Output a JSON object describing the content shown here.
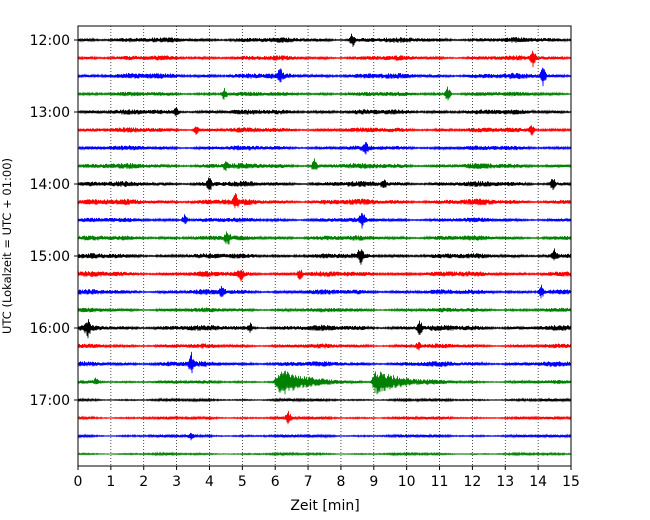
{
  "chart_data": {
    "type": "line",
    "subtype": "helicorder",
    "title": "",
    "xlabel": "Zeit  [min]",
    "ylabel": "UTC (Lokalzeit = UTC + 01:00)",
    "xlim": [
      0,
      15
    ],
    "x_ticks": [
      0,
      1,
      2,
      3,
      4,
      5,
      6,
      7,
      8,
      9,
      10,
      11,
      12,
      13,
      14,
      15
    ],
    "grid": "vertical dotted lines at each minute",
    "row_interval_minutes": 15,
    "y_ticks": [
      {
        "label": "12:00",
        "row": 0
      },
      {
        "label": "13:00",
        "row": 4
      },
      {
        "label": "14:00",
        "row": 8
      },
      {
        "label": "15:00",
        "row": 12
      },
      {
        "label": "16:00",
        "row": 16
      },
      {
        "label": "17:00",
        "row": 20
      }
    ],
    "colors": [
      "#000000",
      "#ff0000",
      "#0000ff",
      "#008000"
    ],
    "series": [
      {
        "start": "12:00",
        "color": "#000000",
        "spikes": [
          {
            "t": 8.35,
            "a": 7
          }
        ],
        "noise": 2.4
      },
      {
        "start": "12:15",
        "color": "#ff0000",
        "spikes": [
          {
            "t": 13.85,
            "a": 8
          }
        ],
        "noise": 2.2
      },
      {
        "start": "12:30",
        "color": "#0000ff",
        "spikes": [
          {
            "t": 6.15,
            "a": 6
          },
          {
            "t": 14.15,
            "a": 9
          }
        ],
        "noise": 2.6
      },
      {
        "start": "12:45",
        "color": "#008000",
        "spikes": [
          {
            "t": 4.45,
            "a": 6
          },
          {
            "t": 11.25,
            "a": 8
          }
        ],
        "noise": 2.0
      },
      {
        "start": "13:00",
        "color": "#000000",
        "spikes": [
          {
            "t": 3.0,
            "a": 4
          }
        ],
        "noise": 2.4
      },
      {
        "start": "13:15",
        "color": "#ff0000",
        "spikes": [
          {
            "t": 3.6,
            "a": 5
          },
          {
            "t": 13.8,
            "a": 6
          }
        ],
        "noise": 2.3
      },
      {
        "start": "13:30",
        "color": "#0000ff",
        "spikes": [
          {
            "t": 8.75,
            "a": 5
          }
        ],
        "noise": 2.2
      },
      {
        "start": "13:45",
        "color": "#008000",
        "spikes": [
          {
            "t": 7.2,
            "a": 7
          },
          {
            "t": 4.5,
            "a": 4
          }
        ],
        "noise": 2.6
      },
      {
        "start": "14:00",
        "color": "#000000",
        "spikes": [
          {
            "t": 4.0,
            "a": 6
          },
          {
            "t": 9.3,
            "a": 6
          },
          {
            "t": 14.45,
            "a": 6
          }
        ],
        "noise": 2.5
      },
      {
        "start": "14:15",
        "color": "#ff0000",
        "spikes": [
          {
            "t": 4.8,
            "a": 6
          }
        ],
        "noise": 2.8
      },
      {
        "start": "14:30",
        "color": "#0000ff",
        "spikes": [
          {
            "t": 3.25,
            "a": 6
          },
          {
            "t": 8.65,
            "a": 7
          }
        ],
        "noise": 2.1
      },
      {
        "start": "14:45",
        "color": "#008000",
        "spikes": [
          {
            "t": 4.55,
            "a": 7
          }
        ],
        "noise": 2.3
      },
      {
        "start": "15:00",
        "color": "#000000",
        "spikes": [
          {
            "t": 8.6,
            "a": 8
          },
          {
            "t": 14.5,
            "a": 6
          }
        ],
        "noise": 2.4
      },
      {
        "start": "15:15",
        "color": "#ff0000",
        "spikes": [
          {
            "t": 4.95,
            "a": 6
          },
          {
            "t": 6.75,
            "a": 6
          }
        ],
        "noise": 2.5
      },
      {
        "start": "15:30",
        "color": "#0000ff",
        "spikes": [
          {
            "t": 4.4,
            "a": 6
          },
          {
            "t": 14.1,
            "a": 6
          }
        ],
        "noise": 2.4
      },
      {
        "start": "15:45",
        "color": "#008000",
        "spikes": [],
        "noise": 2.0
      },
      {
        "start": "16:00",
        "color": "#000000",
        "spikes": [
          {
            "t": 0.3,
            "a": 8
          },
          {
            "t": 5.25,
            "a": 4
          },
          {
            "t": 10.4,
            "a": 7
          }
        ],
        "noise": 2.6
      },
      {
        "start": "16:15",
        "color": "#ff0000",
        "spikes": [
          {
            "t": 10.35,
            "a": 4
          }
        ],
        "noise": 2.0
      },
      {
        "start": "16:30",
        "color": "#0000ff",
        "spikes": [
          {
            "t": 3.45,
            "a": 10
          }
        ],
        "noise": 2.4
      },
      {
        "start": "16:45",
        "color": "#008000",
        "spikes": [
          {
            "t": 0.55,
            "a": 4
          }
        ],
        "noise": 1.6,
        "events": [
          {
            "t0": 5.95,
            "t1": 8.6,
            "peak": 6.2,
            "a": 14
          },
          {
            "t0": 8.9,
            "t1": 11.2,
            "peak": 9.05,
            "a": 14
          }
        ]
      },
      {
        "start": "17:00",
        "color": "#000000",
        "spikes": [],
        "noise": 1.2
      },
      {
        "start": "17:15",
        "color": "#ff0000",
        "spikes": [
          {
            "t": 6.4,
            "a": 6
          }
        ],
        "noise": 1.4
      },
      {
        "start": "17:30",
        "color": "#0000ff",
        "spikes": [
          {
            "t": 3.45,
            "a": 4
          }
        ],
        "noise": 1.4
      },
      {
        "start": "17:45",
        "color": "#008000",
        "spikes": [],
        "noise": 1.0
      }
    ]
  }
}
